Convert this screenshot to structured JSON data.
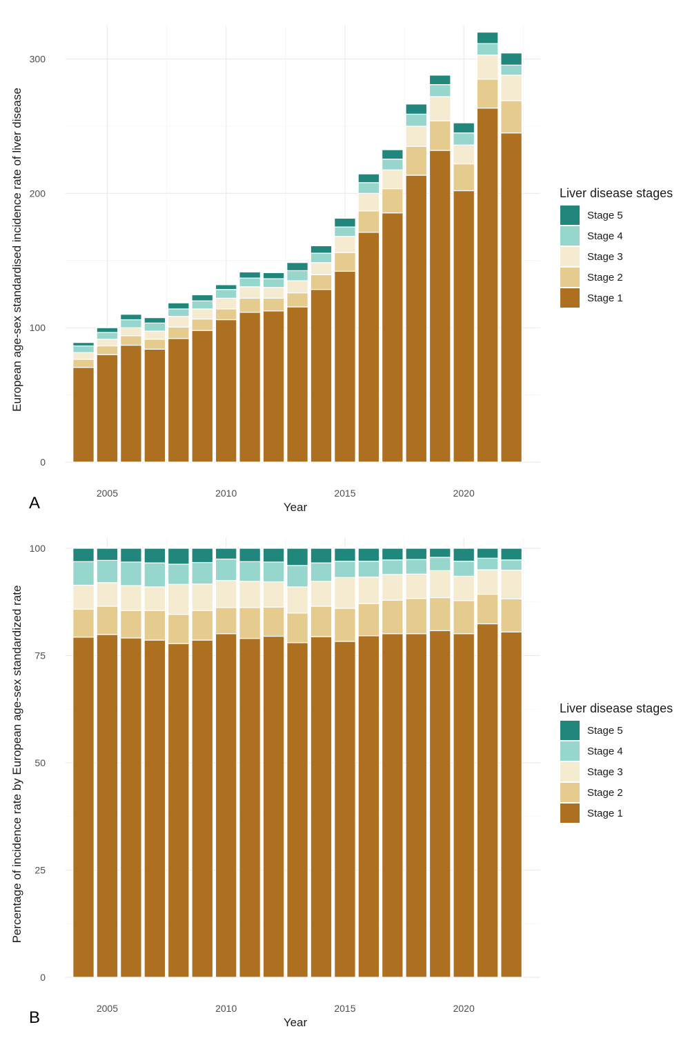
{
  "chart_data": [
    {
      "type": "bar",
      "stacked": true,
      "panel_label": "A",
      "xlabel": "Year",
      "ylabel": "European age-sex standardised incidence rate of liver disease",
      "x": [
        2004,
        2005,
        2006,
        2007,
        2008,
        2009,
        2010,
        2011,
        2012,
        2013,
        2014,
        2015,
        2016,
        2017,
        2018,
        2019,
        2020,
        2021,
        2022
      ],
      "xticks": [
        2005,
        2010,
        2015,
        2020
      ],
      "ylim": [
        0,
        325
      ],
      "yticks": [
        0,
        100,
        200,
        300
      ],
      "grid": true,
      "legend": {
        "title": "Liver disease stages",
        "position": "right"
      },
      "series": [
        {
          "name": "Stage 1",
          "color": "#AD7021",
          "values": [
            70.5,
            80,
            87,
            84,
            92,
            98,
            106,
            111.5,
            112.5,
            115.5,
            128.5,
            142,
            171,
            185.5,
            213.5,
            232,
            202,
            263.5,
            245
          ]
        },
        {
          "name": "Stage 2",
          "color": "#E6CB8F",
          "values": [
            6,
            6.5,
            7,
            7.5,
            8.5,
            8.5,
            8,
            10.5,
            9.5,
            10.5,
            11,
            14,
            16,
            18,
            21.5,
            22,
            20,
            21.5,
            24
          ]
        },
        {
          "name": "Stage 3",
          "color": "#F5EBD1",
          "values": [
            5,
            5,
            6,
            6,
            8,
            7.5,
            8,
            8.5,
            8,
            9,
            9,
            12,
            13,
            14,
            15,
            18,
            14,
            18,
            19
          ]
        },
        {
          "name": "Stage 4",
          "color": "#97D6CD",
          "values": [
            5,
            5,
            6,
            6,
            5.5,
            6,
            6.5,
            6.5,
            6.5,
            7.5,
            7,
            7,
            8,
            8,
            9,
            9,
            9,
            8.5,
            7.5
          ]
        },
        {
          "name": "Stage 5",
          "color": "#21877D",
          "values": [
            2.5,
            3.5,
            4,
            4,
            4.5,
            4.5,
            3.5,
            4.5,
            4.5,
            6,
            5.5,
            6.5,
            6.5,
            7,
            7.5,
            7,
            7.5,
            8.5,
            9
          ]
        }
      ]
    },
    {
      "type": "bar",
      "stacked": true,
      "panel_label": "B",
      "xlabel": "Year",
      "ylabel": "Percentage of incidence rate by European age-sex standardized rate",
      "x": [
        2004,
        2005,
        2006,
        2007,
        2008,
        2009,
        2010,
        2011,
        2012,
        2013,
        2014,
        2015,
        2016,
        2017,
        2018,
        2019,
        2020,
        2021,
        2022
      ],
      "xticks": [
        2005,
        2010,
        2015,
        2020
      ],
      "ylim": [
        0,
        102.5
      ],
      "yticks": [
        0,
        25,
        50,
        75,
        100
      ],
      "grid": true,
      "legend": {
        "title": "Liver disease stages",
        "position": "right"
      },
      "series": [
        {
          "name": "Stage 1",
          "color": "#AD7021",
          "values": [
            79.3,
            79.9,
            79.1,
            78.6,
            77.8,
            78.6,
            80.1,
            79.0,
            79.5,
            78.0,
            79.4,
            78.3,
            79.6,
            80.1,
            80.1,
            80.8,
            80.1,
            82.4,
            80.5
          ]
        },
        {
          "name": "Stage 2",
          "color": "#E6CB8F",
          "values": [
            6.5,
            6.6,
            6.4,
            6.9,
            6.8,
            6.9,
            6.1,
            7.2,
            6.8,
            6.9,
            7.1,
            7.7,
            7.5,
            7.8,
            8.2,
            7.7,
            7.7,
            6.9,
            7.7
          ]
        },
        {
          "name": "Stage 3",
          "color": "#F5EBD1",
          "values": [
            5.6,
            5.5,
            5.8,
            5.5,
            7.0,
            6.2,
            6.3,
            6.1,
            5.9,
            6.1,
            5.8,
            7.2,
            6.2,
            6.0,
            5.7,
            6.3,
            5.7,
            5.7,
            6.7
          ]
        },
        {
          "name": "Stage 4",
          "color": "#97D6CD",
          "values": [
            5.5,
            5.2,
            5.5,
            5.6,
            4.7,
            5.0,
            5.0,
            4.6,
            4.6,
            5.0,
            4.3,
            3.8,
            3.7,
            3.4,
            3.4,
            3.1,
            3.5,
            2.7,
            2.4
          ]
        },
        {
          "name": "Stage 5",
          "color": "#21877D",
          "values": [
            3.1,
            2.8,
            3.2,
            3.4,
            3.7,
            3.3,
            2.5,
            3.1,
            3.2,
            4.0,
            3.4,
            3.0,
            3.0,
            2.7,
            2.6,
            2.1,
            3.0,
            2.3,
            2.7
          ]
        }
      ]
    }
  ]
}
